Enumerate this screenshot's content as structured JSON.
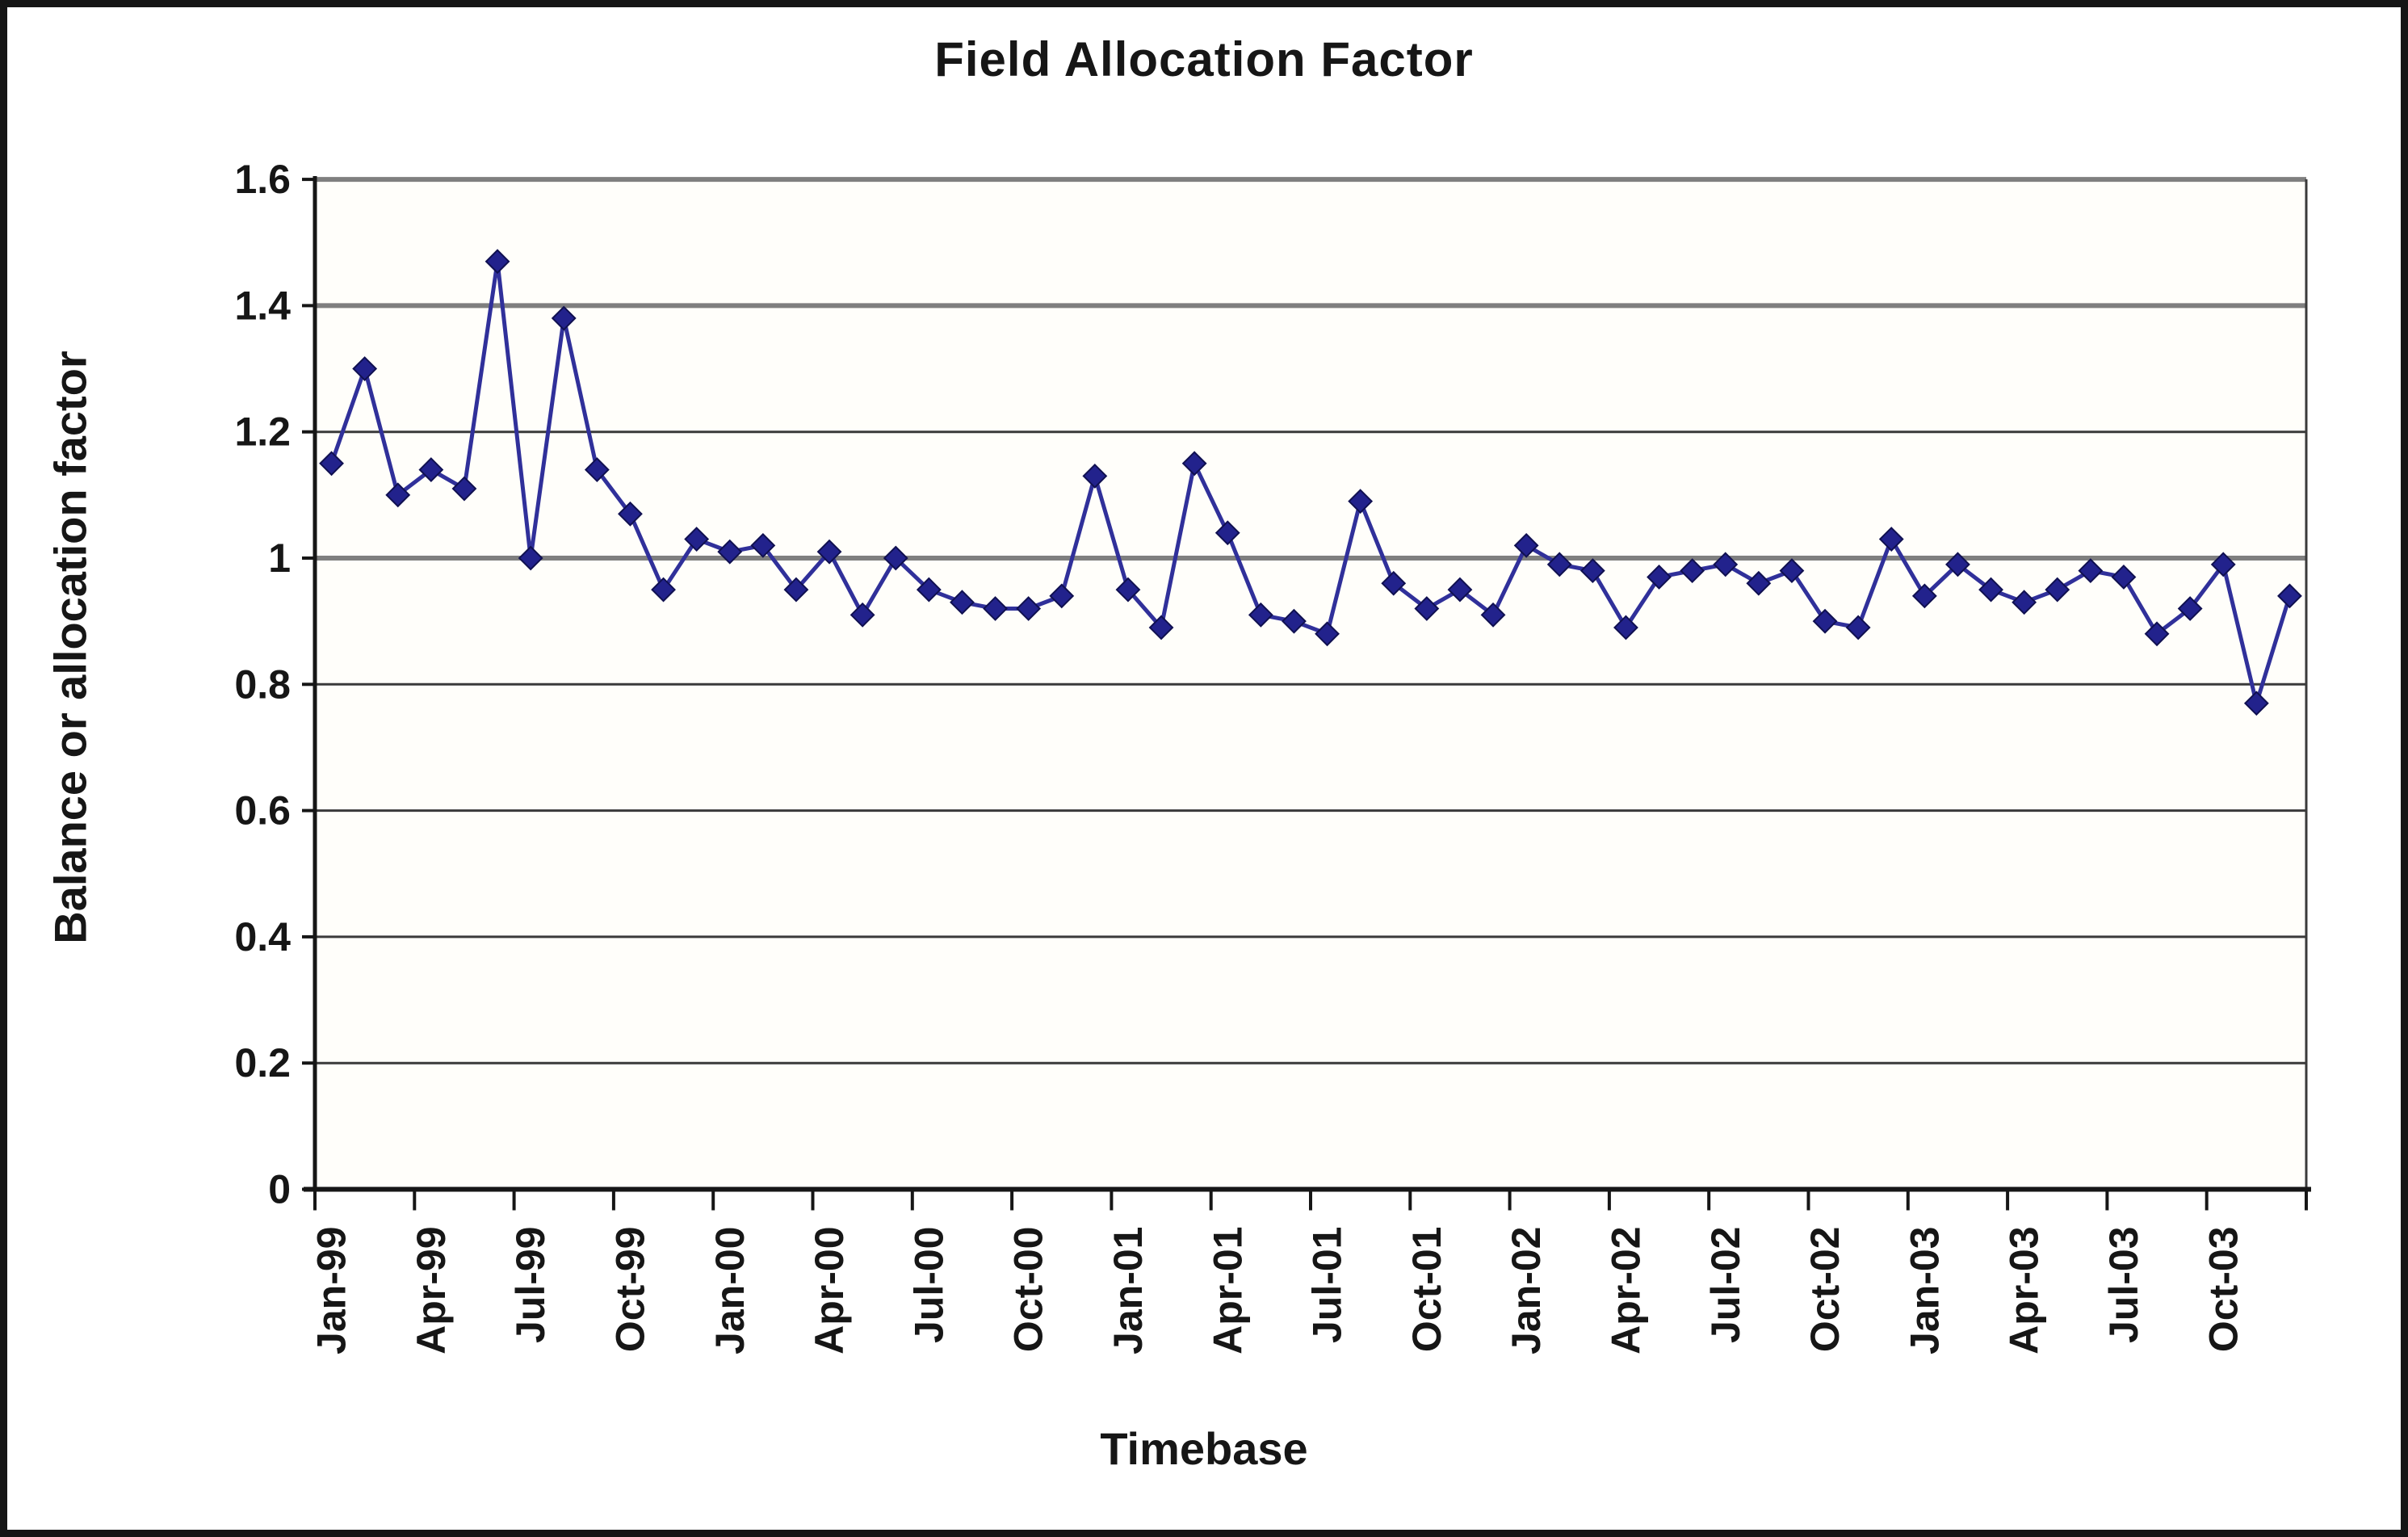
{
  "figure": {
    "title": "Field Allocation Factor"
  },
  "chart_data": {
    "type": "line",
    "title": "Field Allocation Factor",
    "xlabel": "Timebase",
    "ylabel": "Balance or allocation factor",
    "ylim": [
      0,
      1.6
    ],
    "ytick_step": 0.2,
    "ytick_labels": [
      "0",
      "0.2",
      "0.4",
      "0.6",
      "0.8",
      "1",
      "1.2",
      "1.4",
      "1.6"
    ],
    "xtick_labels": [
      "Jan-99",
      "Apr-99",
      "Jul-99",
      "Oct-99",
      "Jan-00",
      "Apr-00",
      "Jul-00",
      "Oct-00",
      "Jan-01",
      "Apr-01",
      "Jul-01",
      "Oct-01",
      "Jan-02",
      "Apr-02",
      "Jul-02",
      "Oct-02",
      "Jan-03",
      "Apr-03",
      "Jul-03",
      "Oct-03"
    ],
    "grid": true,
    "legend_position": "none",
    "x": [
      "Jan-99",
      "Feb-99",
      "Mar-99",
      "Apr-99",
      "May-99",
      "Jun-99",
      "Jul-99",
      "Aug-99",
      "Sep-99",
      "Oct-99",
      "Nov-99",
      "Dec-99",
      "Jan-00",
      "Feb-00",
      "Mar-00",
      "Apr-00",
      "May-00",
      "Jun-00",
      "Jul-00",
      "Aug-00",
      "Sep-00",
      "Oct-00",
      "Nov-00",
      "Dec-00",
      "Jan-01",
      "Feb-01",
      "Mar-01",
      "Apr-01",
      "May-01",
      "Jun-01",
      "Jul-01",
      "Aug-01",
      "Sep-01",
      "Oct-01",
      "Nov-01",
      "Dec-01",
      "Jan-02",
      "Feb-02",
      "Mar-02",
      "Apr-02",
      "May-02",
      "Jun-02",
      "Jul-02",
      "Aug-02",
      "Sep-02",
      "Oct-02",
      "Nov-02",
      "Dec-02",
      "Jan-03",
      "Feb-03",
      "Mar-03",
      "Apr-03",
      "May-03",
      "Jun-03",
      "Jul-03",
      "Aug-03",
      "Sep-03",
      "Oct-03",
      "Nov-03",
      "Dec-03"
    ],
    "series": [
      {
        "name": "Field allocation factor",
        "marker": "diamond",
        "line_color": "#30309a",
        "marker_color": "#22228c",
        "values": [
          1.15,
          1.3,
          1.1,
          1.14,
          1.11,
          1.47,
          1.0,
          1.38,
          1.14,
          1.07,
          0.95,
          1.03,
          1.01,
          1.02,
          0.95,
          1.01,
          0.91,
          1.0,
          0.95,
          0.93,
          0.92,
          0.92,
          0.94,
          1.13,
          0.95,
          0.89,
          1.15,
          1.04,
          0.91,
          0.9,
          0.88,
          1.09,
          0.96,
          0.92,
          0.95,
          0.91,
          1.02,
          0.99,
          0.98,
          0.89,
          0.97,
          0.98,
          0.99,
          0.96,
          0.98,
          0.9,
          0.89,
          1.03,
          0.94,
          0.99,
          0.95,
          0.93,
          0.95,
          0.98,
          0.97,
          0.88,
          0.92,
          0.99,
          0.77,
          0.94
        ]
      }
    ]
  }
}
